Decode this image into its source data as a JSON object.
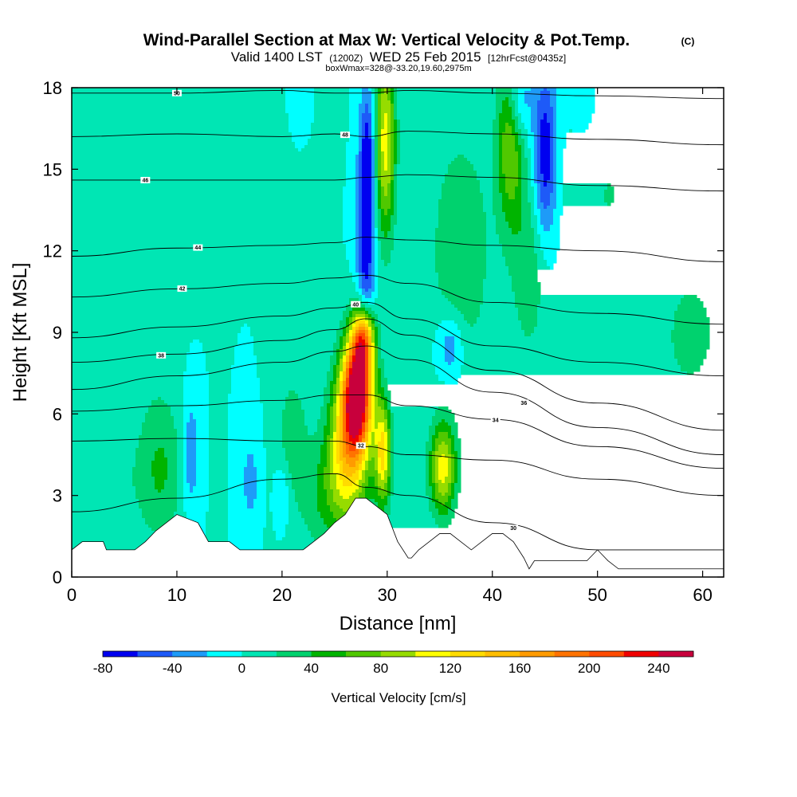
{
  "chart_data": {
    "type": "heatmap",
    "title": "Wind-Parallel Section at Max W: Vertical Velocity & Pot.Temp.",
    "copyright": "(C)",
    "subtitle_valid": "Valid 1400 LST",
    "subtitle_utc": "(1200Z)",
    "subtitle_date": "WED 25 Feb 2015",
    "subtitle_fcst": "[12hrFcst@0435z]",
    "box_info": "boxWmax=328@-33.20,19.60,2975m",
    "xlabel": "Distance [nm]",
    "ylabel": "Height [Kft MSL]",
    "xlim": [
      0,
      62
    ],
    "ylim": [
      0,
      18
    ],
    "xticks": [
      0,
      10,
      20,
      30,
      40,
      50,
      60
    ],
    "yticks": [
      0,
      3,
      6,
      9,
      12,
      15,
      18
    ],
    "colorbar": {
      "label": "Vertical Velocity [cm/s]",
      "levels": [
        -80,
        -60,
        -40,
        -20,
        0,
        20,
        40,
        60,
        80,
        100,
        120,
        140,
        160,
        180,
        200,
        220,
        240,
        260
      ],
      "tick_values": [
        -80,
        -40,
        0,
        40,
        80,
        120,
        160,
        200,
        240
      ],
      "tick_labels": [
        "-80",
        "-40",
        "0",
        "40",
        "80",
        "120",
        "160",
        "200",
        "240"
      ],
      "colors": [
        "#0000f0",
        "#1e5af8",
        "#1e9bf8",
        "#00ffff",
        "#00e6b4",
        "#00d26e",
        "#00b400",
        "#50c800",
        "#96dc00",
        "#ffff00",
        "#ffdc00",
        "#ffbe00",
        "#ff9b00",
        "#ff7300",
        "#ff4b00",
        "#f00000",
        "#c8003c"
      ]
    },
    "background_level": 0,
    "updraft_cores": [
      {
        "x": 27.2,
        "y": 6.8,
        "sx": 1.0,
        "sy": 1.5,
        "w": 260
      },
      {
        "x": 26.2,
        "y": 5.0,
        "sx": 1.3,
        "sy": 1.8,
        "w": 110
      },
      {
        "x": 27.8,
        "y": 8.8,
        "sx": 0.7,
        "sy": 0.8,
        "w": 150
      },
      {
        "x": 29.6,
        "y": 4.6,
        "sx": 0.55,
        "sy": 1.3,
        "w": 120
      },
      {
        "x": 35.3,
        "y": 4.0,
        "sx": 0.9,
        "sy": 1.2,
        "w": 110
      },
      {
        "x": 29.8,
        "y": 16.0,
        "sx": 0.7,
        "sy": 2.5,
        "w": 110
      },
      {
        "x": 41.7,
        "y": 16.0,
        "sx": 0.9,
        "sy": 2.2,
        "w": 80
      },
      {
        "x": 25.0,
        "y": 3.0,
        "sx": 2.5,
        "sy": 1.5,
        "w": 45
      },
      {
        "x": 8.5,
        "y": 4.0,
        "sx": 1.5,
        "sy": 2.0,
        "w": 40
      },
      {
        "x": 3.0,
        "y": 3.5,
        "sx": 3.0,
        "sy": 1.5,
        "w": 18
      },
      {
        "x": 16.0,
        "y": 17.0,
        "sx": 4.0,
        "sy": 1.5,
        "w": 15
      },
      {
        "x": 37.0,
        "y": 12.0,
        "sx": 2.0,
        "sy": 3.0,
        "w": 40
      },
      {
        "x": 43.5,
        "y": 11.5,
        "sx": 1.2,
        "sy": 2.5,
        "w": 35
      },
      {
        "x": 51.0,
        "y": 14.0,
        "sx": 3.0,
        "sy": 3.0,
        "w": 20
      },
      {
        "x": 58.0,
        "y": 16.5,
        "sx": 2.5,
        "sy": 2.0,
        "w": 18
      },
      {
        "x": 59.0,
        "y": 9.0,
        "sx": 1.8,
        "sy": 1.5,
        "w": 30
      },
      {
        "x": 54.0,
        "y": 6.0,
        "sx": 3.0,
        "sy": 2.0,
        "w": 10
      },
      {
        "x": 21.0,
        "y": 5.5,
        "sx": 1.0,
        "sy": 1.5,
        "w": 30
      },
      {
        "x": 45.0,
        "y": 3.5,
        "sx": 2.5,
        "sy": 1.5,
        "w": 12
      },
      {
        "x": 6.5,
        "y": 12.0,
        "sx": 2.0,
        "sy": 3.0,
        "w": 18
      }
    ],
    "downdraft_cores": [
      {
        "x": 28.0,
        "y": 12.5,
        "sx": 0.6,
        "sy": 2.8,
        "w": -80
      },
      {
        "x": 28.2,
        "y": 16.0,
        "sx": 0.5,
        "sy": 1.5,
        "w": -45
      },
      {
        "x": 45.0,
        "y": 15.5,
        "sx": 0.8,
        "sy": 2.2,
        "w": -80
      },
      {
        "x": 42.5,
        "y": 17.5,
        "sx": 0.8,
        "sy": 1.0,
        "w": -50
      },
      {
        "x": 36.0,
        "y": 8.5,
        "sx": 0.9,
        "sy": 0.9,
        "w": -45
      },
      {
        "x": 11.3,
        "y": 4.5,
        "sx": 0.6,
        "sy": 1.5,
        "w": -40
      },
      {
        "x": 17.0,
        "y": 3.5,
        "sx": 0.6,
        "sy": 1.2,
        "w": -30
      },
      {
        "x": 20.0,
        "y": 3.0,
        "sx": 0.5,
        "sy": 0.8,
        "w": -30
      },
      {
        "x": 21.5,
        "y": 17.5,
        "sx": 0.8,
        "sy": 1.0,
        "w": -20
      },
      {
        "x": 48.5,
        "y": 17.5,
        "sx": 1.0,
        "sy": 1.0,
        "w": -20
      }
    ],
    "terrain_x": [
      0,
      1,
      3,
      3.3,
      4,
      5,
      6,
      7,
      8,
      9,
      10,
      12,
      13,
      15,
      16,
      22,
      23,
      24,
      25,
      26,
      27,
      28,
      29,
      30,
      31,
      32,
      32.3,
      33,
      34,
      35,
      36,
      37,
      38,
      39,
      40,
      41,
      42,
      43,
      43.5,
      44,
      48,
      49,
      50,
      51,
      52,
      62
    ],
    "terrain_y": [
      1.0,
      1.3,
      1.3,
      1.0,
      1.0,
      1.0,
      1.0,
      1.3,
      1.7,
      2.0,
      2.3,
      2.0,
      1.3,
      1.3,
      1.0,
      1.0,
      1.3,
      1.6,
      2.0,
      2.3,
      2.9,
      2.9,
      2.6,
      2.3,
      1.3,
      0.7,
      0.7,
      1.0,
      1.3,
      1.6,
      1.6,
      1.3,
      1.0,
      1.3,
      1.6,
      1.6,
      1.3,
      0.7,
      0.3,
      0.6,
      0.6,
      0.6,
      1.0,
      0.6,
      0.3,
      0.3
    ],
    "theta_contours": [
      {
        "label": "30",
        "y": [
          2.4,
          2.9,
          3.6,
          3.8,
          3.3,
          3.0,
          2.0,
          1.0,
          1.0
        ]
      },
      {
        "label": "32",
        "y": [
          5.0,
          5.1,
          5.0,
          5.0,
          4.8,
          4.5,
          4.3,
          3.6,
          3.0
        ]
      },
      {
        "label": "34",
        "y": [
          6.1,
          6.3,
          6.5,
          6.7,
          6.7,
          6.3,
          5.8,
          4.8,
          4.0
        ]
      },
      {
        "label": "36",
        "y": [
          6.9,
          7.4,
          7.9,
          8.3,
          8.5,
          8.0,
          6.8,
          5.5,
          4.5
        ]
      },
      {
        "label": "38",
        "y": [
          7.9,
          8.2,
          8.7,
          9.1,
          9.5,
          8.9,
          7.6,
          6.4,
          5.4
        ]
      },
      {
        "label": "40",
        "y": [
          8.8,
          9.2,
          9.6,
          9.9,
          10.1,
          9.5,
          8.5,
          7.9,
          7.4
        ]
      },
      {
        "label": "42",
        "y": [
          10.3,
          10.6,
          10.8,
          11.0,
          11.1,
          10.8,
          10.1,
          9.7,
          9.3
        ]
      },
      {
        "label": "44",
        "y": [
          11.8,
          12.1,
          12.2,
          12.3,
          12.5,
          12.4,
          12.2,
          12.0,
          11.6
        ]
      },
      {
        "label": "46",
        "y": [
          14.6,
          14.6,
          14.6,
          14.6,
          14.7,
          14.8,
          14.7,
          14.4,
          14.2
        ]
      },
      {
        "label": "48",
        "y": [
          16.2,
          16.3,
          16.2,
          16.3,
          16.2,
          16.4,
          16.3,
          16.1,
          15.9
        ]
      },
      {
        "label": "50",
        "y": [
          17.8,
          17.8,
          17.9,
          17.8,
          17.8,
          17.9,
          17.8,
          17.7,
          17.6
        ]
      }
    ],
    "contour_x": [
      0,
      10,
      20,
      25,
      28,
      32,
      40,
      50,
      62
    ],
    "contour_label_x": [
      42,
      27.5,
      40.3,
      43,
      8.5,
      27,
      10.5,
      12,
      7,
      26,
      10
    ]
  }
}
